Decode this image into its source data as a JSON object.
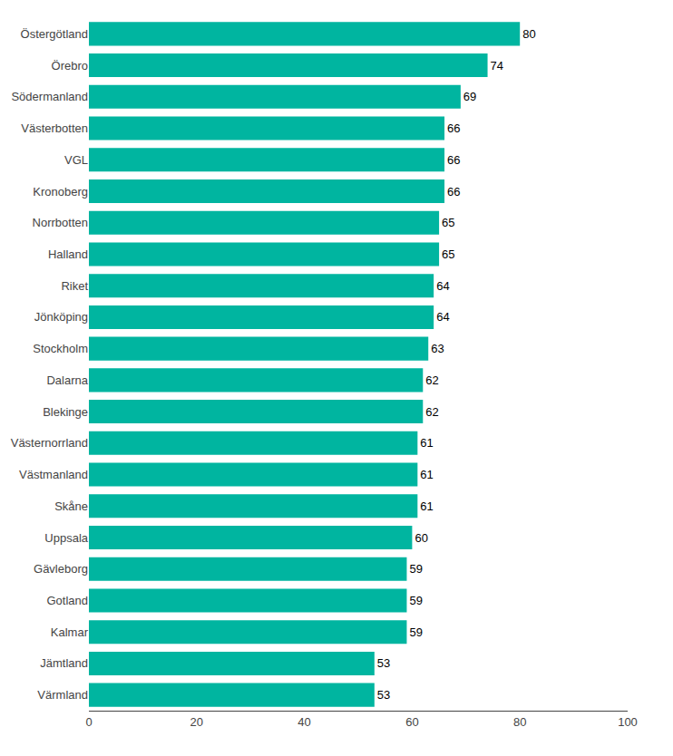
{
  "chart_data": {
    "type": "bar",
    "orientation": "horizontal",
    "categories": [
      "Värmland",
      "Jämtland",
      "Kalmar",
      "Gotland",
      "Gävleborg",
      "Uppsala",
      "Skåne",
      "Västmanland",
      "Västernorrland",
      "Blekinge",
      "Dalarna",
      "Stockholm",
      "Jönköping",
      "Riket",
      "Halland",
      "Norrbotten",
      "Kronoberg",
      "VGL",
      "Västerbotten",
      "Södermanland",
      "Örebro",
      "Östergötland"
    ],
    "values": [
      53,
      53,
      59,
      59,
      59,
      60,
      61,
      61,
      61,
      62,
      62,
      63,
      64,
      64,
      65,
      65,
      66,
      66,
      66,
      69,
      74,
      80
    ],
    "color": "#00b5a0",
    "xlim": [
      0,
      100
    ],
    "xticks": [
      0,
      20,
      40,
      60,
      80,
      100
    ],
    "data_labels": true,
    "grid": false
  }
}
